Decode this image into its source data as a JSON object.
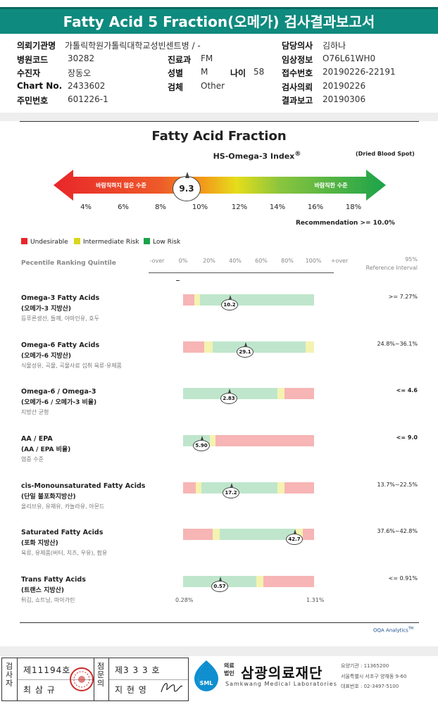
{
  "report_title": "Fatty Acid 5 Fraction(오메가) 검사결과보고서",
  "patient_info": {
    "hospital_label": "의뢰기관명",
    "hospital_value": "가톨릭학원가톨릭대학교성빈센트병 / -",
    "code_label": "병원코드",
    "code_value": "30282",
    "receiver_label": "수진자",
    "receiver_value": "장동오",
    "chart_label": "Chart No.",
    "chart_value": "2433602",
    "id_label": "주민번호",
    "id_value": "601226-1",
    "dept_label": "진료과",
    "dept_value": "FM",
    "sex_label": "성별",
    "sex_value": "M",
    "age_label": "나이",
    "age_value": "58",
    "specimen_label": "검체",
    "specimen_value": "Other",
    "doctor_label": "담당의사",
    "doctor_value": "김하나",
    "clinical_label": "임상정보",
    "clinical_value": "O76L61WH0",
    "receipt_label": "접수번호",
    "receipt_value": "20190226-22191",
    "request_label": "검사의뢰",
    "request_value": "20190226",
    "report_label": "결과보고",
    "report_value": "20190306"
  },
  "index_chart": {
    "title": "Fatty Acid Fraction",
    "index_name": "HS-Omega-3 Index",
    "index_sup": "®",
    "sample_type": "(Dried Blood Spot)",
    "undesirable_text": "바람직하지 않은 수준",
    "desirable_text": "바람직한 수준",
    "value": "9.3",
    "axis_ticks": [
      "4%",
      "6%",
      "8%",
      "10%",
      "12%",
      "14%",
      "16%",
      "18%"
    ],
    "recommendation": "Recommendation   >= 10.0%"
  },
  "legend": [
    {
      "label": "Undesirable",
      "color": "#e8262a"
    },
    {
      "label": "Intermediate Risk",
      "color": "#d9d61e"
    },
    {
      "label": "Low Risk",
      "color": "#1ba34a"
    }
  ],
  "quintile": {
    "header": "Pecentile Ranking Quintile",
    "ticks": [
      "-over",
      "0%",
      "20%",
      "40%",
      "60%",
      "80%",
      "100%",
      "+over"
    ],
    "ref_header_1": "95%",
    "ref_header_2": "Reference Interval"
  },
  "colors": {
    "red_zone": "#f7b5b5",
    "yellow_zone": "#f4f3b0",
    "green_zone": "#bfe6cc"
  },
  "fatty_acids": [
    {
      "name": "Omega-3 Fatty Acids",
      "korean": "(오메가-3 지방산)",
      "foods": "등푸른생선, 들깨, 아마인유, 호두",
      "value": "10.2",
      "reference": ">= 7.27%",
      "ref_bold": false
    },
    {
      "name": "Omega-6 Fatty Acids",
      "korean": "(오메가-6 지방산)",
      "foods": "식물성유, 곡물, 곡물사료 섭취 육류·유제품",
      "value": "29.1",
      "reference": "24.8%~36.1%",
      "ref_bold": false
    },
    {
      "name": "Omega-6 / Omega-3",
      "korean": "(오메가-6 / 오메가-3 비율)",
      "foods": "지방산 균형",
      "value": "2.83",
      "reference": "<= 4.6",
      "ref_bold": true
    },
    {
      "name": "AA / EPA",
      "korean": "(AA / EPA 비율)",
      "foods": "염증 수준",
      "value": "5.90",
      "reference": "<= 9.0",
      "ref_bold": true
    },
    {
      "name": "cis-Monounsaturated Fatty Acids",
      "korean": "(단일 불포화지방산)",
      "foods": "올리브유, 유채유, 카놀라유, 아몬드",
      "value": "17.2",
      "reference": "13.7%~22.5%",
      "ref_bold": false
    },
    {
      "name": "Saturated Fatty Acids",
      "korean": "(포화 지방산)",
      "foods": "육류, 유제품(버터, 치즈, 우유), 팜유",
      "value": "42.7",
      "reference": "37.6%~42.8%",
      "ref_bold": false
    },
    {
      "name": "Trans Fatty Acids",
      "korean": "(트랜스 지방산)",
      "foods": "튀김, 쇼트닝, 마아가린",
      "value": "0.57",
      "reference": "<= 0.91%",
      "ref_bold": false
    }
  ],
  "trans_axis": {
    "min": "0.28%",
    "max": "1.31%"
  },
  "oqa": "OQA Analytics",
  "oqa_tm": "TM",
  "footer": {
    "checker_vertical": "검사자",
    "checker_license": "제11194호",
    "checker_name": "최 삼 규",
    "reviewer_vertical": "점문의",
    "reviewer_license": "제3 3 3 호",
    "reviewer_name": "지 현 영",
    "legal_1": "의료",
    "legal_2": "법인",
    "org_name": "삼광의료재단",
    "org_english": "Samkwang Medical Laboratories",
    "logo_text": "SML",
    "contact_1": "요양기관 : 11365200",
    "contact_2": "서울특별시 서초구 양재동 9-60",
    "contact_3": "대표번호 : 02-3497-5100"
  }
}
